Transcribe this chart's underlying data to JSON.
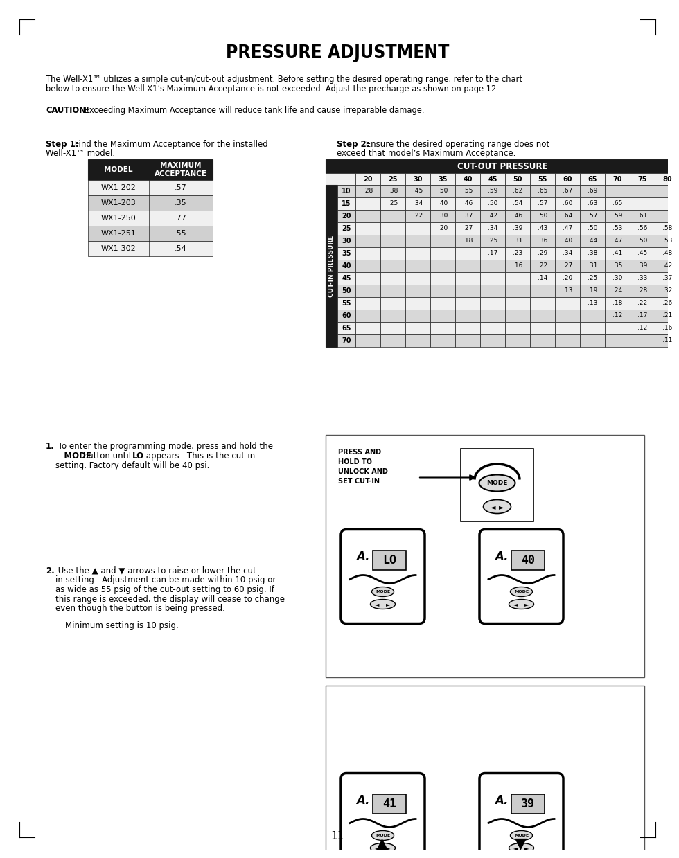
{
  "title": "PRESSURE ADJUSTMENT",
  "intro_line1": "The Well-X1™ utilizes a simple cut-in/cut-out adjustment. Before setting the desired operating range, refer to the chart",
  "intro_line2": "below to ensure the Well-X1’s Maximum Acceptance is not exceeded. Adjust the precharge as shown on page 12.",
  "caution_bold": "CAUTION!",
  "caution_text": " Exceeding Maximum Acceptance will reduce tank life and cause irreparable damage.",
  "step1_bold": "Step 1:",
  "step2_bold": "Step 2:",
  "table1_models": [
    "WX1-202",
    "WX1-203",
    "WX1-250",
    "WX1-251",
    "WX1-302"
  ],
  "table1_values": [
    ".57",
    ".35",
    ".77",
    ".55",
    ".54"
  ],
  "cutout_cols": [
    "20",
    "25",
    "30",
    "35",
    "40",
    "45",
    "50",
    "55",
    "60",
    "65",
    "70",
    "75",
    "80"
  ],
  "cutin_rows": [
    "10",
    "15",
    "20",
    "25",
    "30",
    "35",
    "40",
    "45",
    "50",
    "55",
    "60",
    "65",
    "70"
  ],
  "pressure_data": [
    [
      ".28",
      ".38",
      ".45",
      ".50",
      ".55",
      ".59",
      ".62",
      ".65",
      ".67",
      ".69",
      "",
      "",
      ""
    ],
    [
      "",
      ".25",
      ".34",
      ".40",
      ".46",
      ".50",
      ".54",
      ".57",
      ".60",
      ".63",
      ".65",
      "",
      ""
    ],
    [
      "",
      "",
      ".22",
      ".30",
      ".37",
      ".42",
      ".46",
      ".50",
      ".64",
      ".57",
      ".59",
      ".61",
      ""
    ],
    [
      "",
      "",
      "",
      ".20",
      ".27",
      ".34",
      ".39",
      ".43",
      ".47",
      ".50",
      ".53",
      ".56",
      ".58"
    ],
    [
      "",
      "",
      "",
      "",
      ".18",
      ".25",
      ".31",
      ".36",
      ".40",
      ".44",
      ".47",
      ".50",
      ".53"
    ],
    [
      "",
      "",
      "",
      "",
      "",
      ".17",
      ".23",
      ".29",
      ".34",
      ".38",
      ".41",
      ".45",
      ".48"
    ],
    [
      "",
      "",
      "",
      "",
      "",
      "",
      ".16",
      ".22",
      ".27",
      ".31",
      ".35",
      ".39",
      ".42"
    ],
    [
      "",
      "",
      "",
      "",
      "",
      "",
      "",
      ".14",
      ".20",
      ".25",
      ".30",
      ".33",
      ".37"
    ],
    [
      "",
      "",
      "",
      "",
      "",
      "",
      "",
      "",
      ".13",
      ".19",
      ".24",
      ".28",
      ".32"
    ],
    [
      "",
      "",
      "",
      "",
      "",
      "",
      "",
      "",
      "",
      ".13",
      ".18",
      ".22",
      ".26"
    ],
    [
      "",
      "",
      "",
      "",
      "",
      "",
      "",
      "",
      "",
      "",
      ".12",
      ".17",
      ".21"
    ],
    [
      "",
      "",
      "",
      "",
      "",
      "",
      "",
      "",
      "",
      "",
      "",
      ".12",
      ".16"
    ],
    [
      "",
      "",
      "",
      "",
      "",
      "",
      "",
      "",
      "",
      "",
      "",
      "",
      ".11"
    ]
  ],
  "page_number": "11",
  "bg_color": "#ffffff",
  "dark_bg": "#1a1a1a",
  "light_row": "#f0f0f0",
  "alt_row": "#d0d0d0",
  "border_color": "#222222",
  "t2_light": "#f0f0f0",
  "t2_alt": "#d8d8d8"
}
